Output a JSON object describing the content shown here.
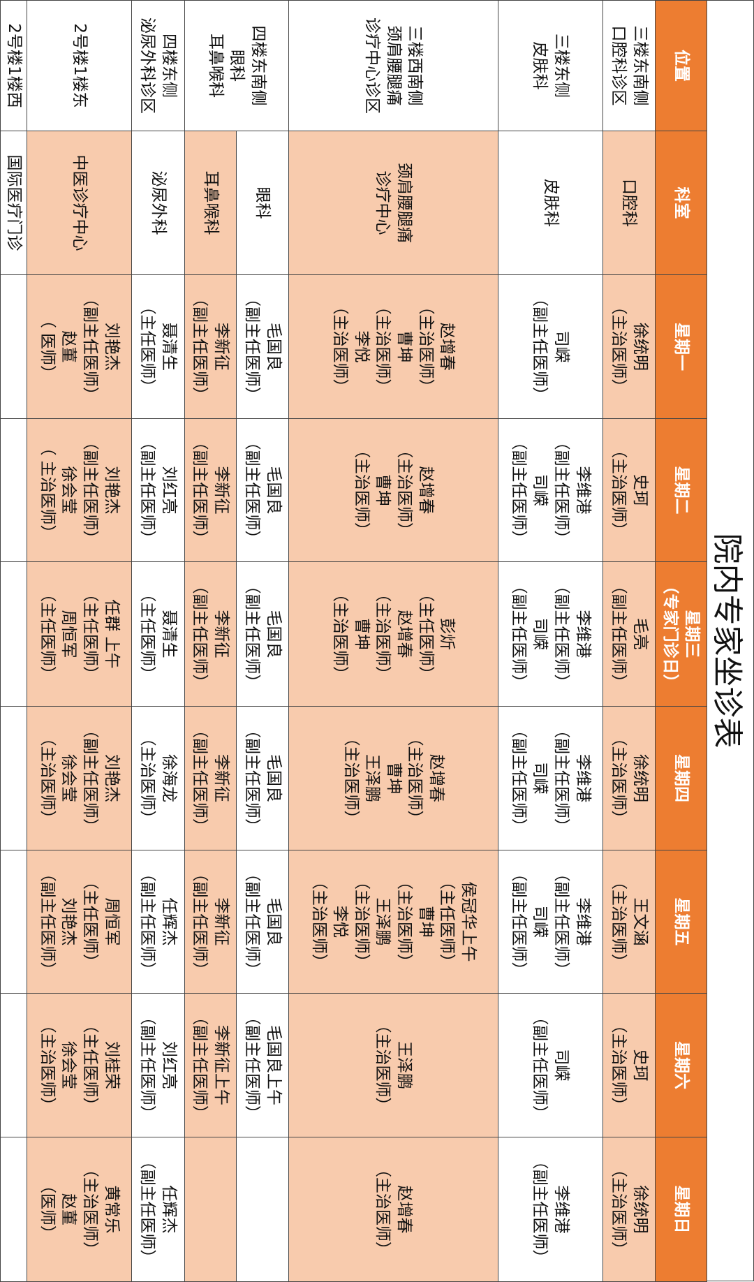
{
  "title": "院内专家坐诊表",
  "colors": {
    "header": "#ED7D31",
    "highlight": "#F8CBAD",
    "plain": "#FFFFFF"
  },
  "headers": [
    [
      "位置"
    ],
    [
      "科室"
    ],
    [
      "星期一"
    ],
    [
      "星期二"
    ],
    [
      "星期三",
      "（专家门诊日）"
    ],
    [
      "星期四"
    ],
    [
      "星期五"
    ],
    [
      "星期六"
    ],
    [
      "星期日"
    ]
  ],
  "rows": [
    {
      "location": [
        "三楼东南侧",
        "口腔科诊区"
      ],
      "dept": [
        "口腔科"
      ],
      "shade": "highlight",
      "days": [
        [
          "徐统明",
          "（主治医师）"
        ],
        [
          "史珂",
          "（主治医师）"
        ],
        [
          "毛亮",
          "（副主任医师）"
        ],
        [
          "徐统明",
          "（主治医师）"
        ],
        [
          "王文涵",
          "（主治医师）"
        ],
        [
          "史珂",
          "（主治医师）"
        ],
        [
          "徐统明",
          "（主治医师）"
        ]
      ]
    },
    {
      "location": [
        "三楼东侧",
        "皮肤科"
      ],
      "dept": [
        "皮肤科"
      ],
      "shade": "plain",
      "days": [
        [
          "司嵘",
          "（副主任医师）"
        ],
        [
          "李维港",
          "（副主任医师）",
          "司嵘",
          "（副主任医师）"
        ],
        [
          "李维港",
          "（副主任医师）",
          "司嵘",
          "（副主任医师）"
        ],
        [
          "李维港",
          "（副主任医师）",
          "司嵘",
          "（副主任医师）"
        ],
        [
          "李维港",
          "（副主任医师）",
          "司嵘",
          "（副主任医师）"
        ],
        [
          "司嵘",
          "（副主任医师）"
        ],
        [
          "李维港",
          "（副主任医师）"
        ]
      ]
    },
    {
      "location": [
        "三楼西南侧",
        "颈肩腰腿痛",
        "诊疗中心诊区"
      ],
      "dept": [
        "颈肩腰腿痛",
        "诊疗中心"
      ],
      "shade": "highlight",
      "days": [
        [
          "赵增春",
          "（主治医师）",
          "曹坤",
          "（主治医师）",
          "李悦",
          "（主治医师）"
        ],
        [
          "赵增春",
          "（主治医师）",
          "曹坤",
          "（主治医师）"
        ],
        [
          "彭炘",
          "（主任医师）",
          "赵增春",
          "（主治医师）",
          "曹坤",
          "（主治医师）"
        ],
        [
          "赵增春",
          "（主治医师）",
          "曹坤",
          "王泽鹏",
          "（主治医师）"
        ],
        [
          "侯冠华上午",
          "（主任医师）",
          "曹坤",
          "（主治医师）",
          "王泽鹏",
          "（主治医师）",
          "李悦",
          "（主治医师）"
        ],
        [
          "王泽鹏",
          "（主治医师）"
        ],
        [
          "赵增春",
          "（主治医师）"
        ]
      ]
    },
    {
      "location": [
        "四楼东南侧",
        "眼科",
        "耳鼻喉科"
      ],
      "location_rows": 2,
      "dept": [
        "眼科"
      ],
      "shade": "plain",
      "days": [
        [
          "毛国良",
          "（副主任医师）"
        ],
        [
          "毛国良",
          "（副主任医师）"
        ],
        [
          "毛国良",
          "（副主任医师）"
        ],
        [
          "毛国良",
          "（副主任医师）"
        ],
        [
          "毛国良",
          "（副主任医师）"
        ],
        [
          "毛国良上午",
          "（副主任医师）"
        ],
        []
      ]
    },
    {
      "dept": [
        "耳鼻喉科"
      ],
      "shade": "highlight",
      "days": [
        [
          "李新征",
          "（副主任医师）"
        ],
        [
          "李新征",
          "（副主任医师）"
        ],
        [
          "李新征",
          "（副主任医师）"
        ],
        [
          "李新征",
          "（副主任医师）"
        ],
        [
          "李新征",
          "（副主任医师）"
        ],
        [
          "李新征上午",
          "（副主任医师）"
        ],
        []
      ]
    },
    {
      "location": [
        "四楼东侧",
        "泌尿外科诊区"
      ],
      "dept": [
        "泌尿外科"
      ],
      "shade": "plain",
      "days": [
        [
          "聂清生",
          "（主任医师）"
        ],
        [
          "刘红亮",
          "（副主任医师）"
        ],
        [
          "聂清生",
          "（主任医师）"
        ],
        [
          "徐海龙",
          "（主治医师）"
        ],
        [
          "任辉杰",
          "（副主任医师）"
        ],
        [
          "刘红亮",
          "（副主任医师）"
        ],
        [
          "任辉杰",
          "（副主任医师）"
        ]
      ]
    },
    {
      "location": [
        "2号楼1楼东"
      ],
      "dept": [
        "中医诊疗中心"
      ],
      "shade": "highlight",
      "days": [
        [
          "刘艳杰",
          "（副主任医师）",
          "赵菫",
          "（ 医师）"
        ],
        [
          "刘艳杰",
          "（副主任医师）",
          "徐会莹",
          "（ 主治医师）"
        ],
        [
          "任群 上午",
          "（主任医师）",
          "周恒军",
          "（主任医师）"
        ],
        [
          "刘艳杰",
          "（副主任医师）",
          "徐会莹",
          "（主治医师）"
        ],
        [
          "周恒军",
          "（主任医师）",
          "刘艳杰",
          "（副主任医师）"
        ],
        [
          "刘桂荣",
          "（主任医师）",
          "徐会莹",
          "（主治医师）"
        ],
        [
          "黄常乐",
          "（主治医师）",
          "赵菫",
          "（医师）"
        ]
      ]
    },
    {
      "location": [
        "2号楼1楼西"
      ],
      "dept": [
        "国际医疗门诊"
      ],
      "shade": "plain",
      "days": [
        [],
        [],
        [],
        [],
        [],
        [],
        []
      ]
    }
  ]
}
